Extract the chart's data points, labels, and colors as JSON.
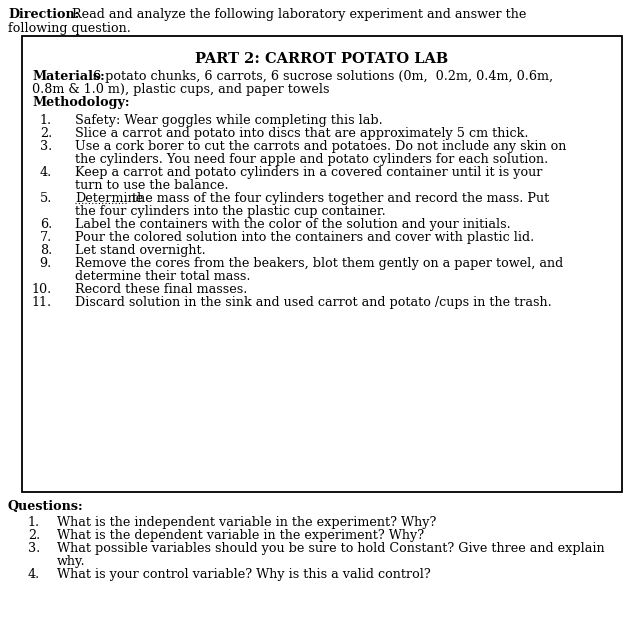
{
  "bg_color": "#ffffff",
  "text_color": "#000000",
  "font_size": 9.2,
  "title_font_size": 10.5,
  "direction_bold": "Direction:",
  "direction_rest": "Read and analyze the following laboratory experiment and answer the",
  "direction_line2": "following question.",
  "box_title": "PART 2: CARROT POTATO LAB",
  "materials_bold": "Materials:",
  "materials_rest": "6 potato chunks, 6 carrots, 6 sucrose solutions (0m,  0.2m, 0.4m, 0.6m,",
  "materials_line2": "0.8m & 1.0 m), plastic cups, and paper towels",
  "methodology_bold": "Methodology:",
  "questions_bold": "Questions:"
}
